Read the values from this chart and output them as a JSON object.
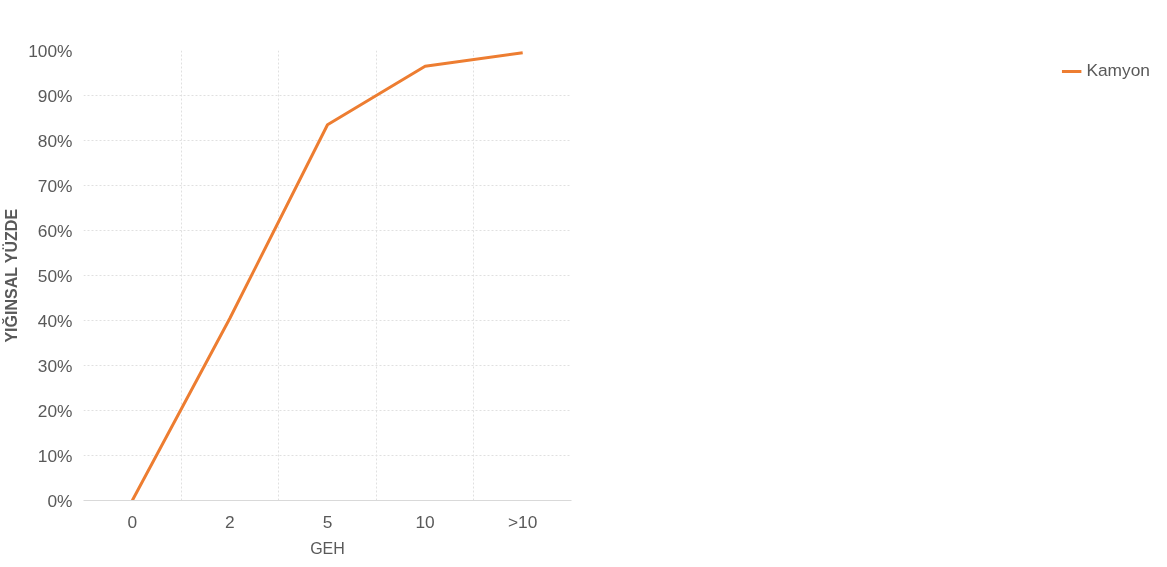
{
  "chart_data": {
    "type": "line",
    "xlabel": "GEH",
    "ylabel": "YIĞINSAL YÜZDE",
    "categories": [
      "0",
      "2",
      "5",
      "10",
      ">10"
    ],
    "series": [
      {
        "name": "Kamyon",
        "color": "#ed7d31",
        "values": [
          0,
          40.5,
          83.5,
          96.5,
          99.5
        ]
      }
    ],
    "ylim": [
      0,
      100
    ],
    "yticks": [
      {
        "value": 0,
        "label": "0%"
      },
      {
        "value": 10,
        "label": "10%"
      },
      {
        "value": 20,
        "label": "20%"
      },
      {
        "value": 30,
        "label": "30%"
      },
      {
        "value": 40,
        "label": "40%"
      },
      {
        "value": 50,
        "label": "50%"
      },
      {
        "value": 60,
        "label": "60%"
      },
      {
        "value": 70,
        "label": "70%"
      },
      {
        "value": 80,
        "label": "80%"
      },
      {
        "value": 90,
        "label": "90%"
      },
      {
        "value": 100,
        "label": "100%"
      }
    ],
    "grid": true,
    "legend": "right",
    "marker": "none",
    "line_style": "solid"
  }
}
